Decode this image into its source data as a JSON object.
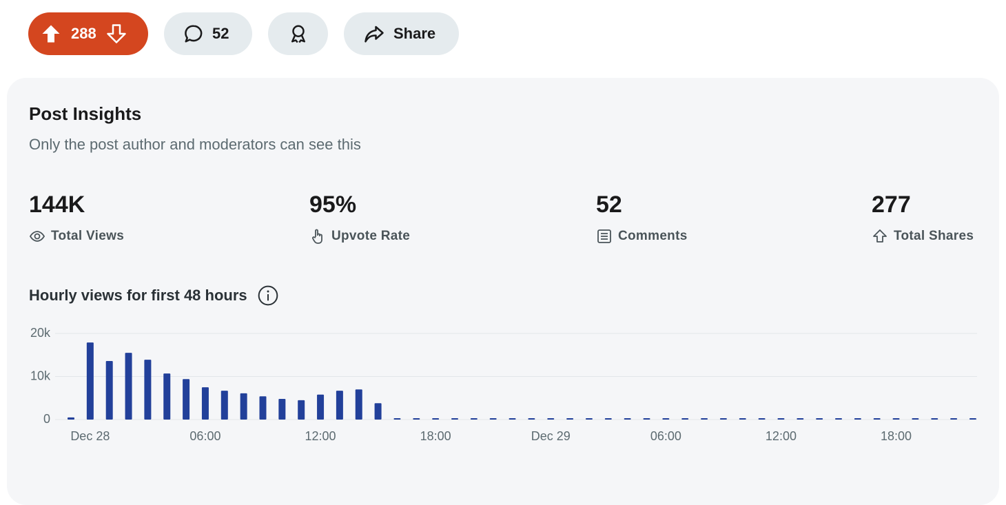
{
  "actions": {
    "upvotes": "288",
    "comments": "52",
    "share": "Share"
  },
  "insights": {
    "title": "Post Insights",
    "subtitle": "Only the post author and moderators can see this",
    "stats": [
      {
        "value": "144K",
        "label": "Total Views"
      },
      {
        "value": "95%",
        "label": "Upvote Rate"
      },
      {
        "value": "52",
        "label": "Comments"
      },
      {
        "value": "277",
        "label": "Total Shares"
      }
    ]
  },
  "chart_data": {
    "type": "bar",
    "title": "Hourly views for first 48 hours",
    "categories": [
      null,
      "Dec 28",
      null,
      null,
      null,
      null,
      null,
      "06:00",
      null,
      null,
      null,
      null,
      null,
      "12:00",
      null,
      null,
      null,
      null,
      null,
      "18:00",
      null,
      null,
      null,
      null,
      null,
      "Dec 29",
      null,
      null,
      null,
      null,
      null,
      "06:00",
      null,
      null,
      null,
      null,
      null,
      "12:00",
      null,
      null,
      null,
      null,
      null,
      "18:00",
      null,
      null,
      null,
      null
    ],
    "values": [
      500,
      17900,
      13600,
      15500,
      13900,
      10700,
      9400,
      7500,
      6700,
      6100,
      5400,
      4800,
      4500,
      5800,
      6700,
      7000,
      3800,
      0,
      0,
      0,
      0,
      0,
      0,
      0,
      0,
      0,
      0,
      0,
      0,
      0,
      0,
      0,
      0,
      0,
      0,
      0,
      0,
      0,
      0,
      0,
      0,
      0,
      0,
      0,
      0,
      0,
      0,
      0
    ],
    "color": "#22409a",
    "ylim": [
      0,
      20000
    ],
    "yticks": [
      0,
      {
        "value": 10000,
        "label": "10k"
      },
      {
        "value": 20000,
        "label": "20k"
      }
    ],
    "grid": true
  }
}
